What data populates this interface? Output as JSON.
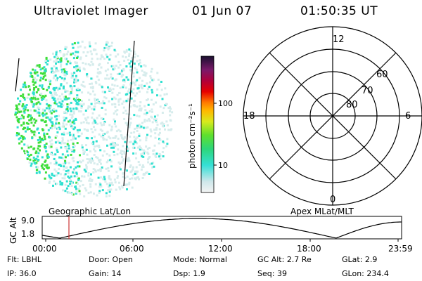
{
  "header": {
    "title": "Ultraviolet Imager",
    "date": "01 Jun 07",
    "time": "01:50:35 UT"
  },
  "colorbar": {
    "unit_label": "photon cm⁻²s⁻¹",
    "ticks": [
      "100",
      "10"
    ]
  },
  "polar": {
    "mlt_labels": {
      "top": "12",
      "left": "18",
      "right": "6",
      "bottom": "0"
    },
    "lat_labels": [
      "60",
      "70",
      "80"
    ]
  },
  "orbit": {
    "geo_label": "Geographic Lat/Lon",
    "apex_label": "Apex MLat/MLT",
    "y_axis_label": "GC Alt",
    "y_ticks": [
      "9.0",
      "1.8"
    ],
    "x_ticks": [
      "00:00",
      "06:00",
      "12:00",
      "18:00",
      "23:59"
    ]
  },
  "info": {
    "row1": [
      {
        "key": "Flt:",
        "value": "LBHL"
      },
      {
        "key": "Door:",
        "value": "Open"
      },
      {
        "key": "Mode:",
        "value": "Normal"
      },
      {
        "key": "GC Alt:",
        "value": "2.7 Re"
      },
      {
        "key": "GLat:",
        "value": "2.9"
      }
    ],
    "row2": [
      {
        "key": "IP:",
        "value": "36.0"
      },
      {
        "key": "Gain:",
        "value": "14"
      },
      {
        "key": "Dsp:",
        "value": "1.9"
      },
      {
        "key": "Seq:",
        "value": "39"
      },
      {
        "key": "GLon:",
        "value": "234.4"
      }
    ]
  },
  "colors": {
    "background": "#ffffff",
    "marker": "#cc3333",
    "speckle_light": "#d6ecec",
    "speckle_cyan": "#2fe0d0",
    "speckle_green": "#3ede3a"
  }
}
